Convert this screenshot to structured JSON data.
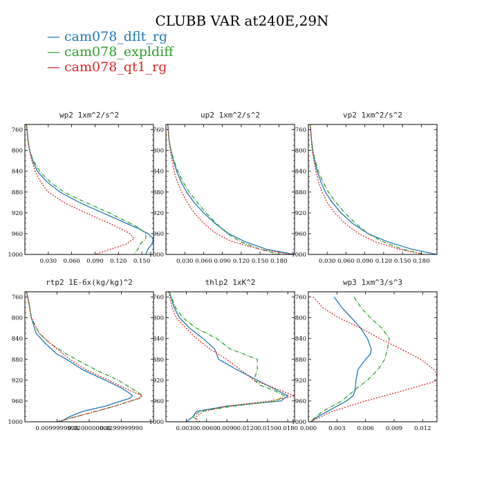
{
  "title": "CLUBB VAR at240E,29N",
  "legend": [
    {
      "name": "cam078_dflt_rg",
      "color": "#1f77b4"
    },
    {
      "name": "cam078_expldiff",
      "color": "#2ca02c"
    },
    {
      "name": "cam078_qt1_rg",
      "color": "#d62728"
    }
  ],
  "chart_data": [
    {
      "type": "line",
      "title": "wp2  1xm^2/s^2",
      "xlim": [
        0,
        0.165
      ],
      "ylim": [
        750,
        1000
      ],
      "xticks": [
        0.03,
        0.06,
        0.09,
        0.12,
        0.15
      ],
      "xtick_labels": [
        "0.030",
        "0.060",
        "0.090",
        "0.120",
        "0.150"
      ],
      "yticks": [
        760,
        800,
        840,
        880,
        920,
        960,
        1000
      ],
      "series": [
        {
          "y": [
            750,
            780,
            800,
            820,
            840,
            860,
            880,
            900,
            920,
            940,
            950,
            960,
            970,
            980,
            990,
            1000
          ],
          "values": [
            0.002,
            0.004,
            0.006,
            0.01,
            0.016,
            0.028,
            0.045,
            0.07,
            0.1,
            0.13,
            0.145,
            0.158,
            0.165,
            0.163,
            0.158,
            0.155
          ]
        },
        {
          "y": [
            750,
            780,
            800,
            820,
            840,
            860,
            880,
            900,
            920,
            940,
            950,
            960,
            970,
            980,
            990,
            1000
          ],
          "values": [
            0.002,
            0.004,
            0.006,
            0.011,
            0.019,
            0.032,
            0.05,
            0.078,
            0.108,
            0.135,
            0.148,
            0.155,
            0.155,
            0.148,
            0.145,
            0.14
          ]
        },
        {
          "y": [
            750,
            780,
            800,
            820,
            840,
            860,
            880,
            900,
            920,
            940,
            950,
            960,
            970,
            980,
            990,
            1000
          ],
          "values": [
            0.002,
            0.004,
            0.006,
            0.009,
            0.013,
            0.02,
            0.03,
            0.05,
            0.078,
            0.108,
            0.122,
            0.135,
            0.14,
            0.13,
            0.11,
            0.09
          ]
        }
      ]
    },
    {
      "type": "line",
      "title": "up2  1xm^2/s^2",
      "xlim": [
        0,
        0.205
      ],
      "ylim": [
        750,
        1000
      ],
      "xticks": [
        0.03,
        0.06,
        0.09,
        0.12,
        0.15,
        0.18
      ],
      "xtick_labels": [
        "0.030",
        "0.060",
        "0.090",
        "0.120",
        "0.150",
        "0.180"
      ],
      "yticks": [
        760,
        800,
        840,
        880,
        920,
        960,
        1000
      ],
      "series": [
        {
          "y": [
            750,
            780,
            800,
            820,
            840,
            860,
            880,
            900,
            920,
            940,
            960,
            975,
            990,
            1000
          ],
          "values": [
            0.003,
            0.005,
            0.008,
            0.012,
            0.017,
            0.024,
            0.033,
            0.045,
            0.06,
            0.078,
            0.1,
            0.125,
            0.16,
            0.205
          ]
        },
        {
          "y": [
            750,
            780,
            800,
            820,
            840,
            860,
            880,
            900,
            920,
            940,
            960,
            975,
            990,
            1000
          ],
          "values": [
            0.003,
            0.005,
            0.008,
            0.013,
            0.019,
            0.027,
            0.037,
            0.05,
            0.064,
            0.08,
            0.098,
            0.118,
            0.15,
            0.18
          ]
        },
        {
          "y": [
            750,
            780,
            800,
            820,
            840,
            860,
            880,
            900,
            920,
            940,
            960,
            975,
            990,
            1000
          ],
          "values": [
            0.003,
            0.005,
            0.007,
            0.01,
            0.013,
            0.018,
            0.025,
            0.034,
            0.045,
            0.06,
            0.08,
            0.105,
            0.15,
            0.2
          ]
        }
      ]
    },
    {
      "type": "line",
      "title": "vp2  1xm^2/s^2",
      "xlim": [
        0,
        0.205
      ],
      "ylim": [
        750,
        1000
      ],
      "xticks": [
        0.03,
        0.06,
        0.09,
        0.12,
        0.15,
        0.18
      ],
      "xtick_labels": [
        "0.030",
        "0.060",
        "0.090",
        "0.120",
        "0.150",
        "0.180"
      ],
      "yticks": [
        760,
        800,
        840,
        880,
        920,
        960,
        1000
      ],
      "series": [
        {
          "y": [
            750,
            780,
            800,
            820,
            840,
            860,
            880,
            900,
            920,
            940,
            960,
            975,
            990,
            1000
          ],
          "values": [
            0.003,
            0.005,
            0.007,
            0.01,
            0.014,
            0.02,
            0.027,
            0.038,
            0.052,
            0.07,
            0.095,
            0.125,
            0.165,
            0.205
          ]
        },
        {
          "y": [
            750,
            780,
            800,
            820,
            840,
            860,
            880,
            900,
            920,
            940,
            960,
            975,
            990,
            1000
          ],
          "values": [
            0.003,
            0.005,
            0.007,
            0.011,
            0.016,
            0.023,
            0.032,
            0.044,
            0.058,
            0.075,
            0.095,
            0.118,
            0.15,
            0.185
          ]
        },
        {
          "y": [
            750,
            780,
            800,
            820,
            840,
            860,
            880,
            900,
            920,
            940,
            960,
            975,
            990,
            1000
          ],
          "values": [
            0.003,
            0.005,
            0.006,
            0.009,
            0.012,
            0.016,
            0.022,
            0.03,
            0.042,
            0.058,
            0.08,
            0.105,
            0.145,
            0.185
          ]
        }
      ]
    },
    {
      "type": "line",
      "title": "rtp2  1E-6x(kg/kg)^2",
      "xlim": [
        0,
        0.04
      ],
      "ylim": [
        750,
        1000
      ],
      "xticks": [
        0.01,
        0.02,
        0.03
      ],
      "xtick_labels": [
        "0.0099999998",
        "0.0200000000",
        "0.0299999990"
      ],
      "yticks": [
        760,
        800,
        840,
        880,
        920,
        960,
        1000
      ],
      "series": [
        {
          "y": [
            750,
            770,
            800,
            830,
            850,
            870,
            880,
            900,
            920,
            935,
            945,
            950,
            955,
            960,
            970,
            980,
            990,
            1000
          ],
          "values": [
            0.0005,
            0.0012,
            0.002,
            0.0035,
            0.0065,
            0.01,
            0.013,
            0.018,
            0.025,
            0.03,
            0.0325,
            0.0335,
            0.0325,
            0.03,
            0.025,
            0.018,
            0.014,
            0.011
          ]
        },
        {
          "y": [
            750,
            770,
            800,
            830,
            850,
            870,
            880,
            900,
            920,
            935,
            945,
            950,
            955,
            960,
            970,
            980,
            990,
            1000
          ],
          "values": [
            0.0005,
            0.0012,
            0.002,
            0.0045,
            0.008,
            0.013,
            0.016,
            0.022,
            0.029,
            0.033,
            0.0355,
            0.0365,
            0.0355,
            0.033,
            0.028,
            0.022,
            0.016,
            0.01
          ]
        },
        {
          "y": [
            750,
            770,
            800,
            830,
            850,
            870,
            880,
            900,
            920,
            935,
            945,
            950,
            955,
            960,
            970,
            980,
            990,
            1000
          ],
          "values": [
            0.0005,
            0.0012,
            0.002,
            0.0045,
            0.008,
            0.012,
            0.014,
            0.019,
            0.026,
            0.031,
            0.0345,
            0.0365,
            0.0355,
            0.033,
            0.028,
            0.022,
            0.016,
            0.01
          ]
        }
      ]
    },
    {
      "type": "line",
      "title": "thlp2  1xK^2",
      "xlim": [
        0,
        0.019
      ],
      "ylim": [
        750,
        1000
      ],
      "xticks": [
        0.003,
        0.006,
        0.009,
        0.012,
        0.015,
        0.018
      ],
      "xtick_labels": [
        "0.0030",
        "0.0060",
        "0.0090",
        "0.0120",
        "0.0150",
        "0.0180"
      ],
      "yticks": [
        760,
        800,
        840,
        880,
        920,
        960,
        1000
      ],
      "series": [
        {
          "y": [
            750,
            780,
            800,
            820,
            840,
            860,
            870,
            880,
            900,
            920,
            940,
            950,
            960,
            970,
            980,
            990,
            1000
          ],
          "values": [
            0.0005,
            0.0012,
            0.002,
            0.0035,
            0.0055,
            0.0072,
            0.0075,
            0.0078,
            0.0105,
            0.0135,
            0.0165,
            0.018,
            0.017,
            0.009,
            0.0045,
            0.004,
            0.003
          ]
        },
        {
          "y": [
            750,
            780,
            800,
            820,
            840,
            860,
            870,
            880,
            900,
            920,
            930,
            940,
            950,
            960,
            970,
            980,
            990,
            1000
          ],
          "values": [
            0.0005,
            0.0014,
            0.0025,
            0.0045,
            0.0075,
            0.0095,
            0.0115,
            0.0135,
            0.0135,
            0.013,
            0.014,
            0.016,
            0.0175,
            0.0163,
            0.01,
            0.005,
            0.004,
            0.005
          ]
        },
        {
          "y": [
            750,
            780,
            800,
            820,
            840,
            860,
            880,
            900,
            920,
            940,
            950,
            960,
            970,
            980,
            990,
            1000
          ],
          "values": [
            0.0004,
            0.0009,
            0.0015,
            0.003,
            0.0045,
            0.0065,
            0.009,
            0.011,
            0.013,
            0.017,
            0.019,
            0.0155,
            0.009,
            0.0055,
            0.0045,
            0.0045
          ]
        }
      ]
    },
    {
      "type": "line",
      "title": "wp3  1xm^3/s^3",
      "xlim": [
        0,
        0.0135
      ],
      "ylim": [
        750,
        1000
      ],
      "xticks": [
        0,
        0.003,
        0.006,
        0.009,
        0.012
      ],
      "xtick_labels": [
        "0.000",
        "0.003",
        "0.006",
        "0.009",
        "0.012"
      ],
      "yticks": [
        760,
        800,
        840,
        880,
        920,
        960,
        1000
      ],
      "series": [
        {
          "y": [
            760,
            780,
            800,
            820,
            840,
            860,
            870,
            880,
            900,
            920,
            940,
            950,
            960,
            970,
            980,
            990,
            1000
          ],
          "values": [
            0.0027,
            0.0035,
            0.0045,
            0.0055,
            0.0062,
            0.0066,
            0.0065,
            0.006,
            0.0052,
            0.005,
            0.0049,
            0.0047,
            0.004,
            0.003,
            0.002,
            0.001,
            0.0003
          ]
        },
        {
          "y": [
            760,
            780,
            800,
            820,
            840,
            860,
            880,
            900,
            920,
            940,
            960,
            970,
            980,
            990,
            1000
          ],
          "values": [
            0.0048,
            0.0055,
            0.0065,
            0.0077,
            0.0085,
            0.0083,
            0.008,
            0.0073,
            0.0062,
            0.0048,
            0.0035,
            0.0025,
            0.0015,
            0.0008,
            0.0002
          ]
        },
        {
          "y": [
            760,
            780,
            800,
            820,
            840,
            860,
            880,
            900,
            915,
            920,
            925,
            940,
            960,
            980,
            1000
          ],
          "values": [
            0.0005,
            0.0015,
            0.0032,
            0.0055,
            0.0075,
            0.0097,
            0.0118,
            0.0132,
            0.0136,
            0.0135,
            0.0128,
            0.01,
            0.006,
            0.0025,
            0.0002
          ]
        }
      ]
    }
  ]
}
